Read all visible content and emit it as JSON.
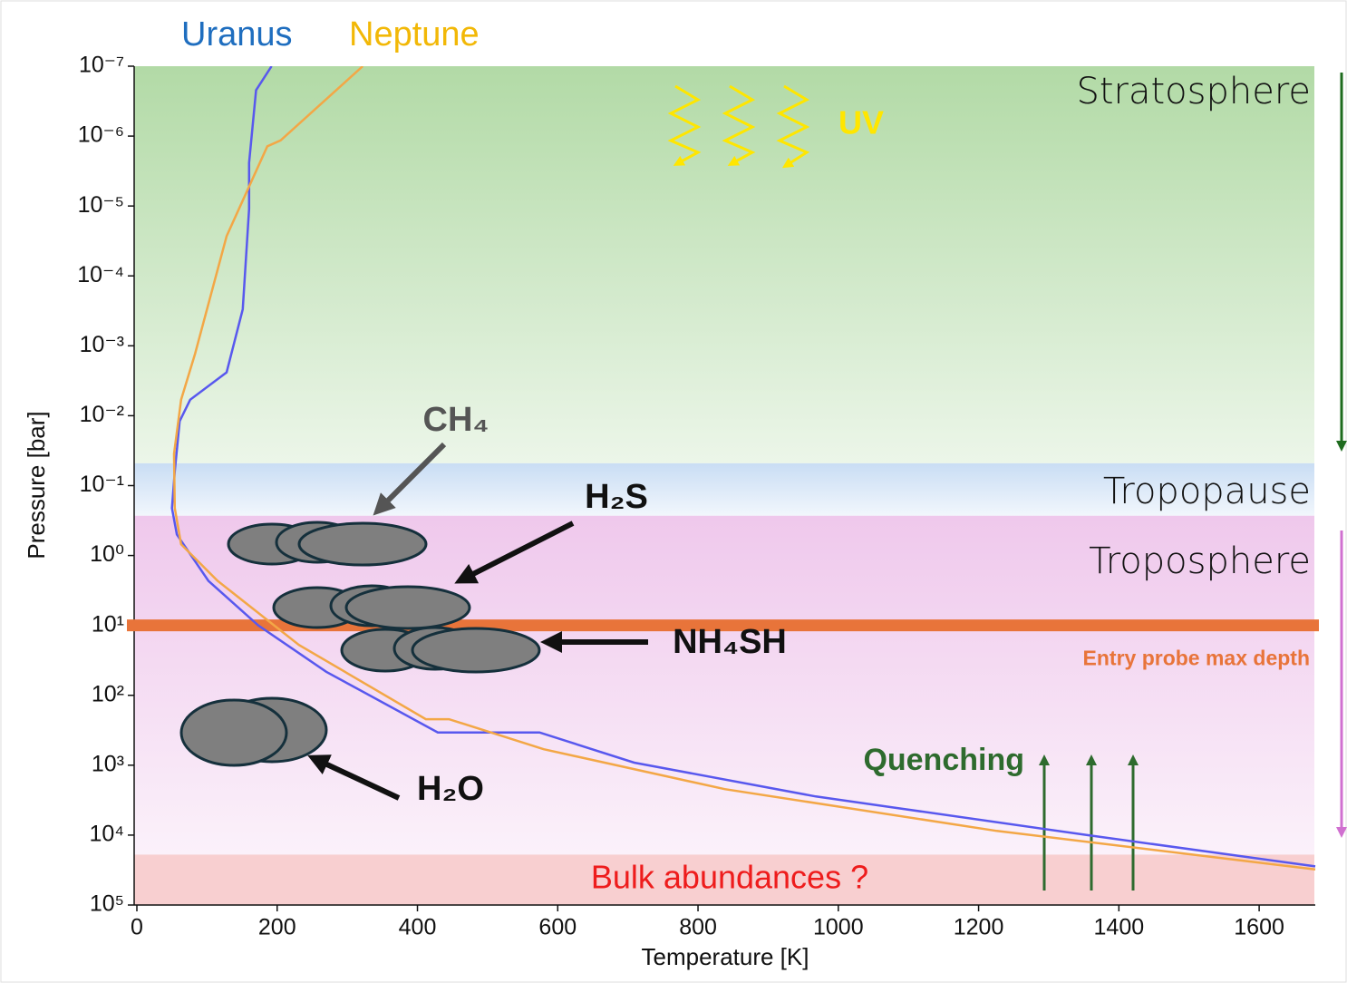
{
  "chart_data": {
    "type": "line",
    "x_label": "Temperature [K]",
    "y_label": "Pressure [bar]",
    "xlim": [
      0,
      1680
    ],
    "xticks": [
      0,
      200,
      400,
      600,
      800,
      1000,
      1200,
      1400,
      1600
    ],
    "ylim": [
      1e-07,
      100000
    ],
    "y_scale": "log",
    "y_inverted": true,
    "yticks": [
      {
        "value": 1e-07,
        "label": "10⁻⁷"
      },
      {
        "value": 1e-06,
        "label": "10⁻⁶"
      },
      {
        "value": 1e-05,
        "label": "10⁻⁵"
      },
      {
        "value": 0.0001,
        "label": "10⁻⁴"
      },
      {
        "value": 0.001,
        "label": "10⁻³"
      },
      {
        "value": 0.01,
        "label": "10⁻²"
      },
      {
        "value": 0.1,
        "label": "10⁻¹"
      },
      {
        "value": 1,
        "label": "10⁰"
      },
      {
        "value": 10,
        "label": "10¹"
      },
      {
        "value": 100,
        "label": "10²"
      },
      {
        "value": 1000,
        "label": "10³"
      },
      {
        "value": 10000,
        "label": "10⁴"
      },
      {
        "value": 100000,
        "label": "10⁵"
      }
    ],
    "series": [
      {
        "name": "Uranus",
        "color": "#5858ee",
        "x": [
          192,
          170,
          160,
          160,
          151,
          128,
          76,
          61,
          54,
          50,
          57,
          102,
          173,
          270,
          429,
          574,
          709,
          968,
          1355,
          1680
        ],
        "values": [
          1e-07,
          2.2e-07,
          2.4e-06,
          1.1e-05,
          0.0003,
          0.0024,
          0.0059,
          0.012,
          0.063,
          0.21,
          0.5,
          2.3,
          10,
          46,
          340,
          340,
          920,
          2800,
          10000,
          28000
        ]
      },
      {
        "name": "Neptune",
        "color": "#f3a746",
        "x": [
          322,
          205,
          186,
          128,
          83,
          63,
          53,
          54,
          63,
          115,
          231,
          412,
          445,
          580,
          838,
          1226,
          1680
        ],
        "values": [
          1e-07,
          1.15e-06,
          1.4e-06,
          2.7e-05,
          0.0013,
          0.0059,
          0.035,
          0.21,
          0.69,
          2.3,
          19,
          220,
          220,
          590,
          2200,
          8700,
          31000
        ]
      }
    ],
    "regions": [
      {
        "label": "Stratosphere",
        "from": 1e-07,
        "to": 0.048,
        "color": "#b2daa6"
      },
      {
        "label": "Tropopause",
        "from": 0.048,
        "to": 0.27,
        "color": "#c9ddf4"
      },
      {
        "label": "Troposphere",
        "from": 0.27,
        "to": 19000,
        "color": "#efc8ec"
      },
      {
        "label": "Bulk abundances ?",
        "from": 19000,
        "to": 100000,
        "color": "#f8cfd0"
      }
    ],
    "hline": {
      "value": 10,
      "label": "Entry probe max depth",
      "color": "#e8743a"
    },
    "annotations": [
      "CH₄",
      "H₂S",
      "NH₄SH",
      "H₂O",
      "UV",
      "Quenching"
    ]
  }
}
